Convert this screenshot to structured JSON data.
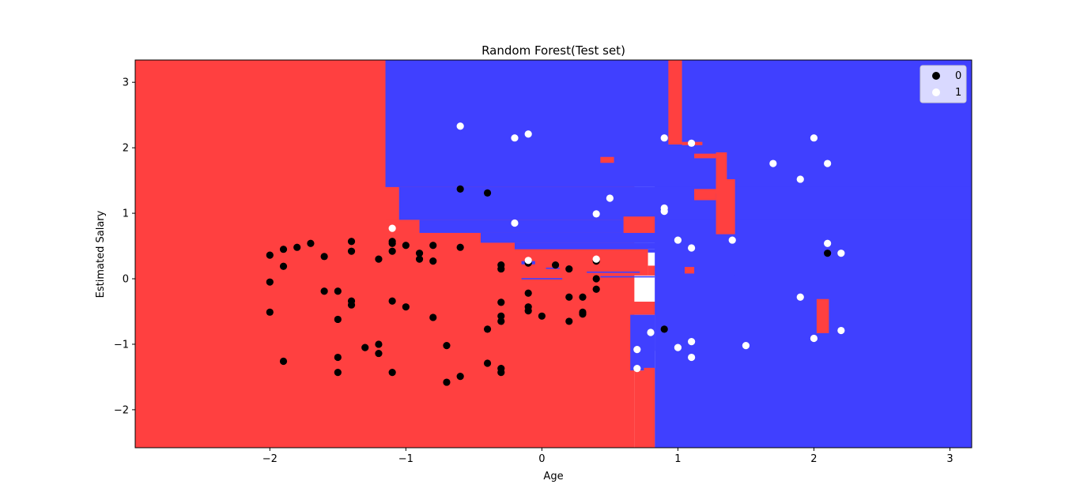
{
  "chart_data": {
    "type": "scatter",
    "title": "Random Forest(Test set)",
    "xlabel": "Age",
    "ylabel": "Estimated Salary",
    "xlim": [
      -2.99,
      3.16
    ],
    "ylim": [
      -2.58,
      3.34
    ],
    "xticks": [
      -2,
      -1,
      0,
      1,
      2,
      3
    ],
    "xtick_labels": [
      "−2",
      "−1",
      "0",
      "1",
      "2",
      "3"
    ],
    "yticks": [
      -2,
      -1,
      0,
      1,
      2,
      3
    ],
    "ytick_labels": [
      "−2",
      "−1",
      "0",
      "1",
      "2",
      "3"
    ],
    "legend_position": "top-right",
    "colors": {
      "class0_region": "#ff4040",
      "class1_region": "#4040ff",
      "class0_point": "#000000",
      "class1_point": "#ffffff"
    },
    "series": [
      {
        "name": "0",
        "color": "#000000",
        "points": [
          [
            -2.0,
            0.36
          ],
          [
            -2.0,
            -0.05
          ],
          [
            -2.0,
            -0.51
          ],
          [
            -1.9,
            0.45
          ],
          [
            -1.9,
            0.19
          ],
          [
            -1.9,
            -1.26
          ],
          [
            -1.8,
            0.48
          ],
          [
            -1.7,
            0.54
          ],
          [
            -1.6,
            0.34
          ],
          [
            -1.6,
            -0.19
          ],
          [
            -1.5,
            -0.19
          ],
          [
            -1.5,
            -0.62
          ],
          [
            -1.5,
            -1.2
          ],
          [
            -1.5,
            -1.43
          ],
          [
            -1.4,
            0.57
          ],
          [
            -1.4,
            0.42
          ],
          [
            -1.4,
            -0.34
          ],
          [
            -1.4,
            -0.4
          ],
          [
            -1.3,
            -1.05
          ],
          [
            -1.2,
            0.3
          ],
          [
            -1.2,
            -1.0
          ],
          [
            -1.2,
            -1.14
          ],
          [
            -1.1,
            0.57
          ],
          [
            -1.1,
            0.54
          ],
          [
            -1.1,
            0.42
          ],
          [
            -1.1,
            -0.34
          ],
          [
            -1.1,
            -1.43
          ],
          [
            -1.0,
            0.51
          ],
          [
            -1.0,
            -0.43
          ],
          [
            -0.9,
            0.39
          ],
          [
            -0.9,
            0.3
          ],
          [
            -0.8,
            0.51
          ],
          [
            -0.8,
            0.27
          ],
          [
            -0.8,
            -0.59
          ],
          [
            -0.7,
            -1.02
          ],
          [
            -0.7,
            -1.58
          ],
          [
            -0.6,
            1.37
          ],
          [
            -0.6,
            0.48
          ],
          [
            -0.6,
            -1.49
          ],
          [
            -0.4,
            1.31
          ],
          [
            -0.4,
            -0.77
          ],
          [
            -0.4,
            -1.29
          ],
          [
            -0.3,
            0.21
          ],
          [
            -0.3,
            0.15
          ],
          [
            -0.3,
            -0.36
          ],
          [
            -0.3,
            -0.57
          ],
          [
            -0.3,
            -0.65
          ],
          [
            -0.3,
            -1.37
          ],
          [
            -0.3,
            -1.43
          ],
          [
            -0.1,
            0.24
          ],
          [
            -0.1,
            -0.22
          ],
          [
            -0.1,
            -0.43
          ],
          [
            -0.1,
            -0.49
          ],
          [
            0.0,
            -0.57
          ],
          [
            0.1,
            0.21
          ],
          [
            0.2,
            0.15
          ],
          [
            0.2,
            -0.28
          ],
          [
            0.2,
            -0.65
          ],
          [
            0.3,
            -0.28
          ],
          [
            0.3,
            -0.51
          ],
          [
            0.3,
            -0.54
          ],
          [
            0.4,
            0.0
          ],
          [
            0.4,
            -0.16
          ],
          [
            0.4,
            0.27
          ],
          [
            -0.1,
            0.27
          ],
          [
            0.9,
            -0.77
          ],
          [
            2.1,
            0.39
          ]
        ]
      },
      {
        "name": "1",
        "color": "#ffffff",
        "points": [
          [
            -0.6,
            2.33
          ],
          [
            -0.2,
            2.15
          ],
          [
            -0.1,
            2.21
          ],
          [
            -1.1,
            0.77
          ],
          [
            -0.2,
            0.85
          ],
          [
            0.4,
            0.99
          ],
          [
            0.5,
            1.23
          ],
          [
            -0.1,
            0.28
          ],
          [
            0.4,
            0.3
          ],
          [
            0.9,
            2.15
          ],
          [
            1.1,
            2.07
          ],
          [
            0.9,
            1.08
          ],
          [
            0.9,
            1.03
          ],
          [
            1.0,
            0.59
          ],
          [
            1.1,
            0.47
          ],
          [
            1.4,
            0.59
          ],
          [
            0.7,
            -1.08
          ],
          [
            0.7,
            -1.37
          ],
          [
            0.8,
            -0.82
          ],
          [
            1.0,
            -1.05
          ],
          [
            1.1,
            -0.96
          ],
          [
            1.1,
            -1.2
          ],
          [
            1.5,
            -1.02
          ],
          [
            1.7,
            1.76
          ],
          [
            1.9,
            1.52
          ],
          [
            2.0,
            2.15
          ],
          [
            2.1,
            1.76
          ],
          [
            2.1,
            0.54
          ],
          [
            2.2,
            0.39
          ],
          [
            1.9,
            -0.28
          ],
          [
            2.0,
            -0.91
          ],
          [
            2.2,
            -0.79
          ]
        ]
      }
    ],
    "regions_class0": [
      [
        -2.99,
        0.68,
        -2.58,
        3.34
      ],
      [
        0.68,
        0.83,
        -2.58,
        -1.4
      ],
      [
        0.68,
        0.78,
        -1.4,
        -1.1
      ],
      [
        0.68,
        0.63,
        -1.1,
        -1.1
      ],
      [
        0.0,
        0.65,
        -1.1,
        -0.55
      ],
      [
        0.0,
        0.85,
        -0.55,
        -0.35
      ],
      [
        -1.15,
        -1.05,
        0.9,
        1.4
      ],
      [
        -1.15,
        -0.9,
        0.7,
        0.9
      ],
      [
        -1.15,
        -0.45,
        0.55,
        0.7
      ],
      [
        -1.15,
        0.78,
        0.4,
        0.55
      ],
      [
        -1.15,
        0.78,
        0.05,
        0.45
      ],
      [
        0.78,
        0.85,
        0.05,
        0.2
      ],
      [
        0.85,
        1.05,
        0.05,
        0.35
      ],
      [
        0.85,
        1.42,
        -0.35,
        0.05
      ],
      [
        1.05,
        1.25,
        -0.5,
        -0.35
      ],
      [
        0.6,
        0.83,
        0.7,
        0.95
      ],
      [
        -0.9,
        -0.35,
        1.27,
        1.37
      ],
      [
        -0.35,
        -0.2,
        1.14,
        1.32
      ],
      [
        -0.2,
        0.0,
        1.2,
        1.28
      ],
      [
        0.43,
        0.53,
        1.77,
        1.86
      ],
      [
        0.93,
        1.03,
        2.05,
        3.34
      ],
      [
        1.03,
        1.18,
        2.04,
        2.09
      ],
      [
        1.12,
        1.28,
        1.84,
        1.91
      ],
      [
        1.28,
        1.36,
        1.3,
        1.93
      ],
      [
        1.12,
        1.28,
        1.2,
        1.37
      ],
      [
        1.28,
        1.42,
        0.68,
        1.52
      ],
      [
        2.02,
        2.11,
        -0.83,
        -0.31
      ],
      [
        0.75,
        0.83,
        -2.58,
        -1.36
      ]
    ],
    "regions_class1": [
      [
        0.83,
        3.16,
        -2.58,
        3.34
      ],
      [
        -1.15,
        3.16,
        1.4,
        3.34
      ],
      [
        -1.05,
        3.16,
        0.9,
        1.4
      ],
      [
        -0.9,
        3.16,
        0.7,
        0.9
      ],
      [
        -0.45,
        3.16,
        0.55,
        0.7
      ],
      [
        -0.2,
        3.16,
        0.45,
        0.55
      ],
      [
        0.78,
        3.16,
        0.4,
        0.45
      ],
      [
        0.85,
        3.16,
        0.2,
        0.4
      ],
      [
        1.05,
        3.16,
        0.05,
        0.2
      ],
      [
        1.42,
        3.16,
        -0.5,
        0.05
      ],
      [
        0.83,
        0.85,
        -1.1,
        -0.55
      ],
      [
        0.65,
        0.83,
        -1.4,
        -0.55
      ],
      [
        -0.15,
        -0.05,
        0.22,
        0.27
      ],
      [
        -0.15,
        0.15,
        -0.01,
        0.01
      ],
      [
        0.03,
        0.13,
        0.15,
        0.17
      ],
      [
        0.33,
        0.72,
        0.09,
        0.11
      ],
      [
        0.43,
        0.83,
        0.02,
        0.04
      ],
      [
        -0.15,
        0.42,
        1.23,
        1.25
      ],
      [
        1.02,
        1.12,
        0.31,
        0.33
      ]
    ],
    "region_overrides_class0": [
      [
        0.6,
        0.83,
        0.7,
        0.95
      ],
      [
        0.93,
        1.03,
        2.05,
        3.34
      ],
      [
        1.03,
        1.18,
        2.04,
        2.09
      ],
      [
        1.12,
        1.28,
        1.84,
        1.91
      ],
      [
        1.28,
        1.36,
        1.3,
        1.93
      ],
      [
        1.12,
        1.28,
        1.2,
        1.37
      ],
      [
        1.28,
        1.42,
        0.68,
        1.52
      ],
      [
        2.02,
        2.11,
        -0.83,
        -0.31
      ],
      [
        0.75,
        0.83,
        -2.58,
        -1.36
      ],
      [
        0.43,
        0.53,
        1.77,
        1.86
      ],
      [
        1.05,
        1.12,
        0.08,
        0.18
      ]
    ]
  }
}
